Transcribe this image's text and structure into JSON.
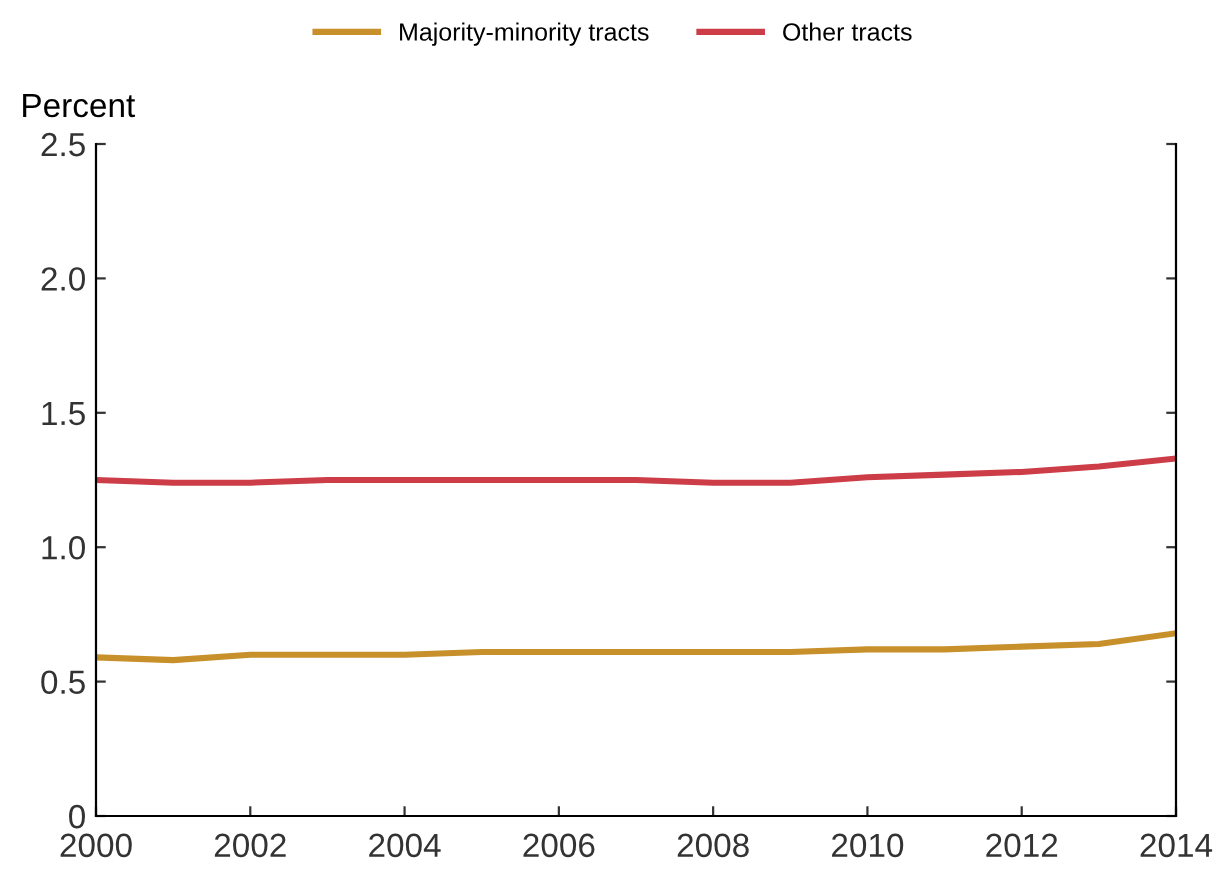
{
  "chart_data": {
    "type": "line",
    "ylabel": "Percent",
    "x": [
      2000,
      2001,
      2002,
      2003,
      2004,
      2005,
      2006,
      2007,
      2008,
      2009,
      2010,
      2011,
      2012,
      2013,
      2014
    ],
    "series": [
      {
        "name": "Majority-minority tracts",
        "color": "#c8902a",
        "values": [
          0.59,
          0.58,
          0.6,
          0.6,
          0.6,
          0.61,
          0.61,
          0.61,
          0.61,
          0.61,
          0.62,
          0.62,
          0.63,
          0.64,
          0.68
        ]
      },
      {
        "name": "Other tracts",
        "color": "#cc3d48",
        "values": [
          1.25,
          1.24,
          1.24,
          1.25,
          1.25,
          1.25,
          1.25,
          1.25,
          1.24,
          1.24,
          1.26,
          1.27,
          1.28,
          1.3,
          1.33
        ]
      }
    ],
    "xlim": [
      2000,
      2014
    ],
    "xticks": [
      2000,
      2002,
      2004,
      2006,
      2008,
      2010,
      2012,
      2014
    ],
    "ylim": [
      0,
      2.5
    ],
    "yticks": [
      0,
      {
        "value": 0.5,
        "label": "0.5"
      },
      {
        "value": 1.0,
        "label": "1.0"
      },
      {
        "value": 1.5,
        "label": "1.5"
      },
      {
        "value": 2.0,
        "label": "2.0"
      },
      {
        "value": 2.5,
        "label": "2.5"
      }
    ],
    "legend": "top",
    "grid": false,
    "line_style": "solid",
    "marker": "none"
  }
}
